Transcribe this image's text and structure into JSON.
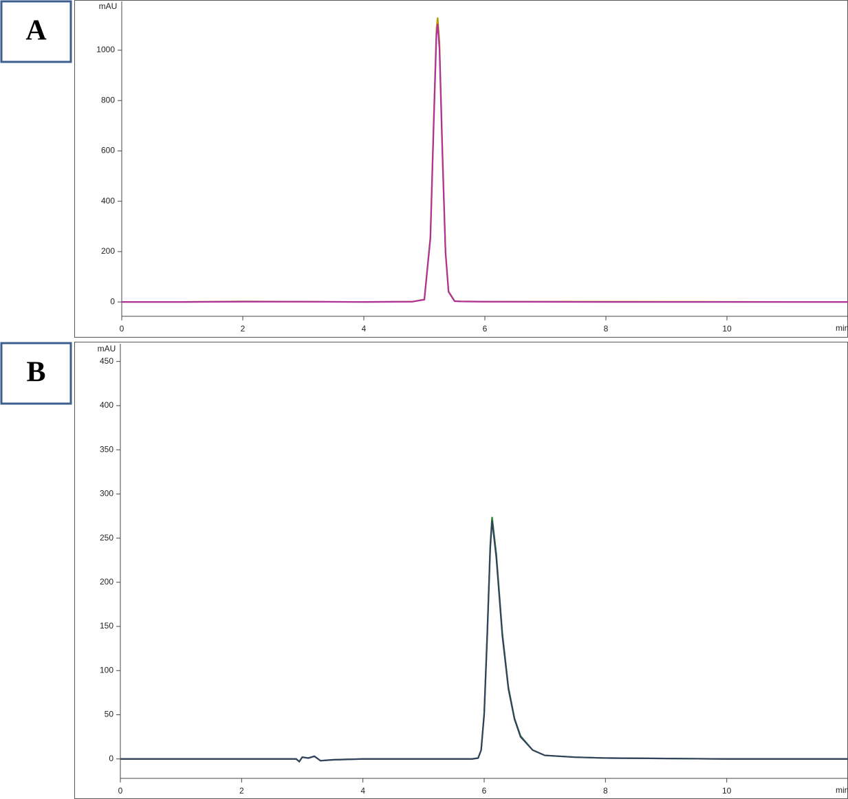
{
  "chart_data": [
    {
      "type": "line",
      "panel_label": "A",
      "ylabel": "mAU",
      "xlabel": "min",
      "x": [
        0,
        1,
        2,
        3,
        4,
        4.8,
        5.0,
        5.1,
        5.15,
        5.2,
        5.22,
        5.25,
        5.3,
        5.35,
        5.4,
        5.5,
        5.6,
        6,
        8,
        12
      ],
      "series": [
        {
          "color": "#b59a00",
          "values": [
            0,
            0,
            2,
            1,
            0,
            1,
            10,
            260,
            685,
            1085,
            1130,
            1030,
            590,
            200,
            42,
            4,
            2,
            1,
            1,
            0
          ]
        },
        {
          "color": "#b0309c",
          "values": [
            0,
            0,
            1,
            1,
            0,
            1,
            9,
            252,
            665,
            1060,
            1105,
            1005,
            575,
            195,
            40,
            3,
            2,
            1,
            0,
            0
          ]
        }
      ],
      "xlim": [
        0,
        12
      ],
      "ylim": [
        -57,
        1194
      ],
      "xticks": [
        0,
        2,
        4,
        6,
        8,
        10
      ],
      "yticks": [
        0,
        200,
        400,
        600,
        800,
        1000
      ]
    },
    {
      "type": "line",
      "panel_label": "B",
      "ylabel": "mAU",
      "xlabel": "min",
      "x": [
        0,
        2,
        2.9,
        2.95,
        3.0,
        3.1,
        3.2,
        3.3,
        3.5,
        4,
        5,
        5.8,
        5.9,
        5.95,
        6.0,
        6.05,
        6.1,
        6.13,
        6.2,
        6.3,
        6.4,
        6.5,
        6.6,
        6.8,
        7,
        7.5,
        8,
        10,
        12
      ],
      "series": [
        {
          "color": "#2e8b2e",
          "values": [
            0,
            0,
            0,
            -3,
            2,
            1,
            3,
            -2,
            -1,
            0,
            0,
            0,
            1,
            10,
            52,
            142,
            242,
            274,
            232,
            142,
            81,
            46,
            26,
            10,
            4,
            2,
            1,
            0,
            0
          ]
        },
        {
          "color": "#33415e",
          "values": [
            0,
            0,
            0,
            -3,
            2,
            1,
            3,
            -2,
            -1,
            0,
            0,
            0,
            1,
            10,
            50,
            138,
            238,
            270,
            228,
            139,
            79,
            45,
            25,
            10,
            4,
            2,
            1,
            0,
            0
          ]
        }
      ],
      "xlim": [
        0,
        12
      ],
      "ylim": [
        -22,
        470
      ],
      "xticks": [
        0,
        2,
        4,
        6,
        8,
        10
      ],
      "yticks": [
        0,
        50,
        100,
        150,
        200,
        250,
        300,
        350,
        400,
        450
      ]
    }
  ]
}
